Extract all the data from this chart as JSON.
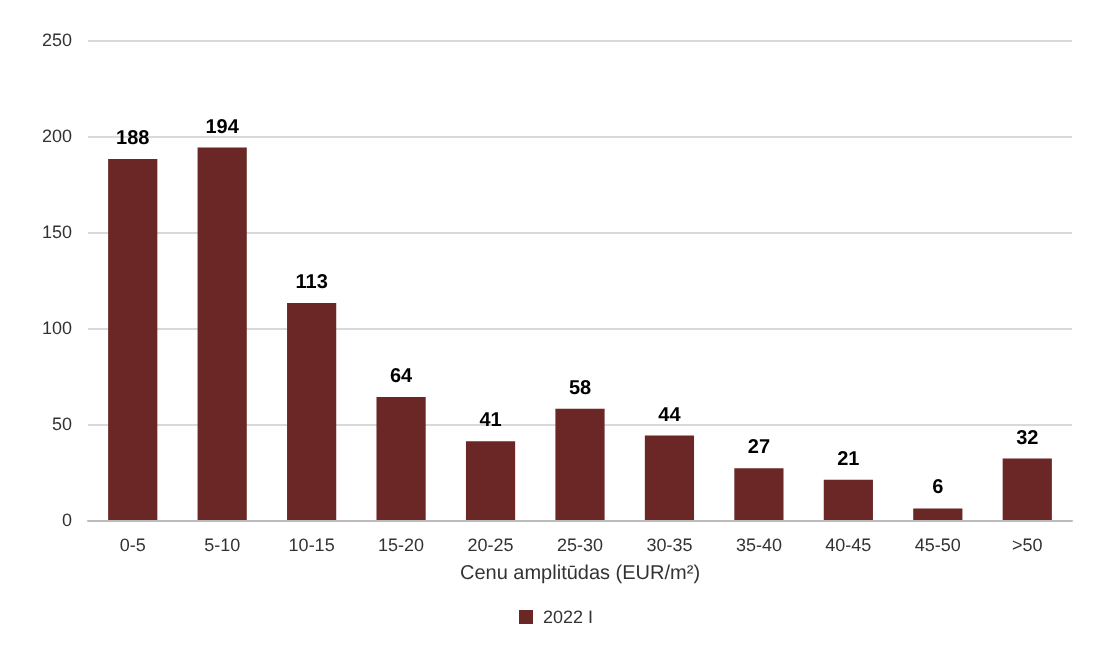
{
  "chart_data": {
    "type": "bar",
    "xlabel": "Cenu amplitūdas (EUR/m²)",
    "categories": [
      "0-5",
      "5-10",
      "10-15",
      "15-20",
      "20-25",
      "25-30",
      "30-35",
      "35-40",
      "40-45",
      "45-50",
      ">50"
    ],
    "series": [
      {
        "name": "2022 I",
        "color": "#6b2626",
        "values": [
          188,
          194,
          113,
          64,
          41,
          58,
          44,
          27,
          21,
          6,
          32
        ]
      }
    ],
    "ylim": [
      0,
      250
    ],
    "yticks": [
      0,
      50,
      100,
      150,
      200,
      250
    ],
    "grid": "y",
    "legend": "bottom",
    "data_labels": true
  }
}
